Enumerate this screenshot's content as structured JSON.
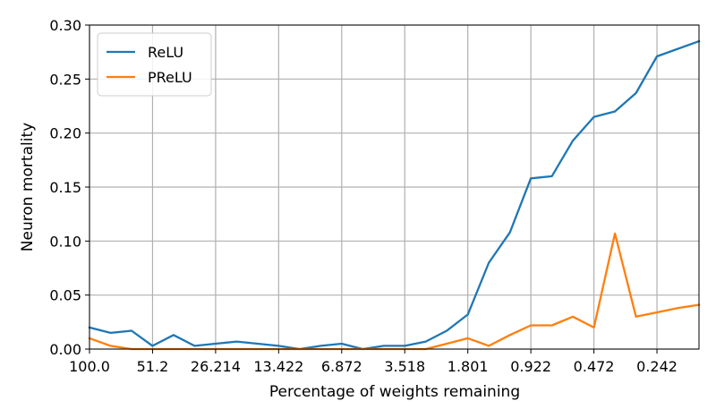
{
  "chart_data": {
    "type": "line",
    "title": "",
    "xlabel": "Percentage of weights remaining",
    "ylabel": "Neuron mortality",
    "x_index_range": [
      0,
      29
    ],
    "ylim": [
      0,
      0.3
    ],
    "grid": true,
    "legend_position": "top-left",
    "x_ticks": [
      {
        "index": 0,
        "label": "100.0"
      },
      {
        "index": 3,
        "label": "51.2"
      },
      {
        "index": 6,
        "label": "26.214"
      },
      {
        "index": 9,
        "label": "13.422"
      },
      {
        "index": 12,
        "label": "6.872"
      },
      {
        "index": 15,
        "label": "3.518"
      },
      {
        "index": 18,
        "label": "1.801"
      },
      {
        "index": 21,
        "label": "0.922"
      },
      {
        "index": 24,
        "label": "0.472"
      },
      {
        "index": 27,
        "label": "0.242"
      }
    ],
    "y_ticks": [
      {
        "value": 0.0,
        "label": "0.00"
      },
      {
        "value": 0.05,
        "label": "0.05"
      },
      {
        "value": 0.1,
        "label": "0.10"
      },
      {
        "value": 0.15,
        "label": "0.15"
      },
      {
        "value": 0.2,
        "label": "0.20"
      },
      {
        "value": 0.25,
        "label": "0.25"
      },
      {
        "value": 0.3,
        "label": "0.30"
      }
    ],
    "series": [
      {
        "name": "ReLU",
        "color": "#1f77b4",
        "values": [
          0.02,
          0.015,
          0.017,
          0.003,
          0.013,
          0.003,
          0.005,
          0.007,
          0.005,
          0.003,
          0.0,
          0.003,
          0.005,
          0.0,
          0.003,
          0.003,
          0.007,
          0.017,
          0.032,
          0.08,
          0.108,
          0.158,
          0.16,
          0.193,
          0.215,
          0.22,
          0.237,
          0.271,
          0.278,
          0.285
        ]
      },
      {
        "name": "PReLU",
        "color": "#ff7f0e",
        "values": [
          0.01,
          0.003,
          0.0,
          0.0,
          0.0,
          0.0,
          0.0,
          0.0,
          0.0,
          0.0,
          0.0,
          0.0,
          0.0,
          0.0,
          0.0,
          0.0,
          0.0,
          0.005,
          0.01,
          0.003,
          0.013,
          0.022,
          0.022,
          0.03,
          0.02,
          0.107,
          0.03,
          0.034,
          0.038,
          0.041
        ]
      }
    ]
  }
}
